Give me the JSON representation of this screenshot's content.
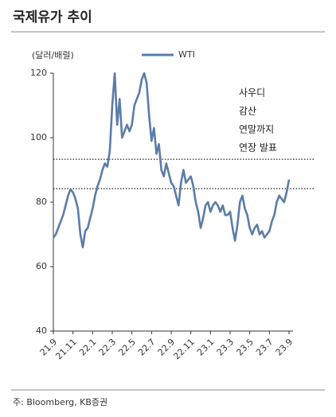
{
  "chart_data": {
    "type": "line",
    "title": "국제유가 추이",
    "y_label": "(달러/배럴)",
    "source": "주: Bloomberg, KB증권",
    "annotation": [
      "사우디",
      "감산",
      "연말까지",
      "연장 발표"
    ],
    "categories": [
      "21.9",
      null,
      null,
      null,
      null,
      null,
      null,
      null,
      "21.11",
      null,
      null,
      null,
      null,
      null,
      null,
      null,
      "22.1",
      null,
      null,
      null,
      null,
      null,
      null,
      null,
      "22.3",
      null,
      null,
      null,
      null,
      null,
      null,
      null,
      "22.5",
      null,
      null,
      null,
      null,
      null,
      null,
      null,
      "22.7",
      null,
      null,
      null,
      null,
      null,
      null,
      null,
      "22.9",
      null,
      null,
      null,
      null,
      null,
      null,
      null,
      "22.11",
      null,
      null,
      null,
      null,
      null,
      null,
      null,
      "23.1",
      null,
      null,
      null,
      null,
      null,
      null,
      null,
      "23.3",
      null,
      null,
      null,
      null,
      null,
      null,
      null,
      "23.5",
      null,
      null,
      null,
      null,
      null,
      null,
      null,
      "23.7",
      null,
      null,
      null,
      null,
      null,
      null,
      null,
      "23.9"
    ],
    "series": [
      {
        "name": "WTI",
        "color": "#5b7ca8",
        "values": [
          69,
          70,
          72,
          74,
          76,
          79,
          82,
          84,
          83,
          81,
          78,
          70,
          66,
          71,
          72,
          75,
          78,
          82,
          85,
          87,
          90,
          92,
          91,
          96,
          110,
          120,
          104,
          112,
          100,
          102,
          104,
          102,
          104,
          110,
          112,
          114,
          118,
          120,
          117,
          107,
          99,
          103,
          95,
          98,
          90,
          88,
          92,
          89,
          86,
          85,
          82,
          79,
          86,
          90,
          86,
          87,
          88,
          85,
          80,
          77,
          72,
          75,
          79,
          80,
          77,
          79,
          80,
          79,
          77,
          79,
          76,
          76,
          77,
          72,
          68,
          73,
          80,
          82,
          78,
          76,
          72,
          70,
          72,
          73,
          70,
          71,
          69,
          70,
          71,
          74,
          76,
          80,
          82,
          81,
          80,
          83,
          87
        ]
      }
    ],
    "reference_lines": [
      93.3,
      84.2
    ],
    "ylim": [
      40,
      120
    ],
    "yticks": [
      40,
      60,
      80,
      100,
      120
    ],
    "grid": false
  }
}
